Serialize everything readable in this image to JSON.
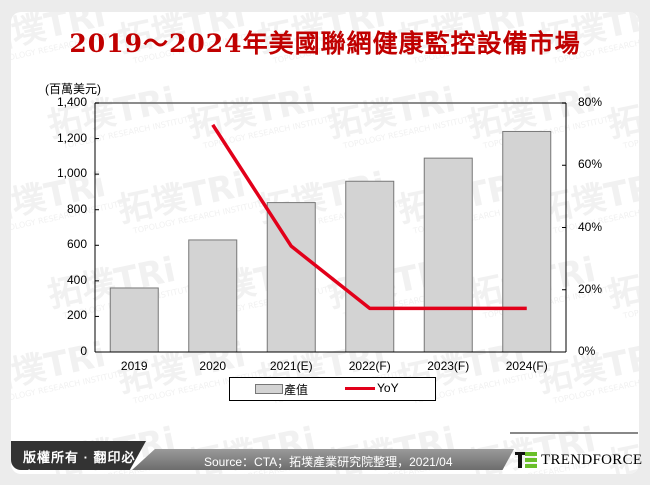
{
  "title": "2019～2024年美國聯網健康監控設備市場",
  "unit_label": "(百萬美元)",
  "chart_data": {
    "type": "bar",
    "title": "2019～2024年美國聯網健康監控設備市場",
    "categories": [
      "2019",
      "2020",
      "2021(E)",
      "2022(F)",
      "2023(F)",
      "2024(F)"
    ],
    "series": [
      {
        "name": "產值",
        "type": "bar",
        "axis": "left",
        "color": "#d3d3d3",
        "values": [
          360,
          630,
          840,
          960,
          1090,
          1240
        ]
      },
      {
        "name": "YoY",
        "type": "line",
        "axis": "right",
        "color": "#e2001a",
        "values": [
          null,
          73,
          34,
          14,
          14,
          14
        ]
      }
    ],
    "ylabel": "(百萬美元)",
    "ylim": [
      0,
      1400
    ],
    "y_ticks": [
      "0",
      "200",
      "400",
      "600",
      "800",
      "1,000",
      "1,200",
      "1,400"
    ],
    "y2lim": [
      0,
      80
    ],
    "y2_ticks": [
      "0%",
      "20%",
      "40%",
      "60%",
      "80%"
    ],
    "legend_position": "bottom",
    "grid": false
  },
  "legend": {
    "bar_label": "產值",
    "line_label": "YoY"
  },
  "footer": {
    "copyright": "版權所有 · 翻印必究",
    "source": "Source：CTA；拓墣產業研究院整理，2021/04",
    "brand": "TRENDFORCE"
  },
  "watermark": {
    "cn": "拓墣",
    "en": "TOPOLOGY RESEARCH INSTITUTE"
  },
  "colors": {
    "title": "#c00000",
    "line": "#e2001a",
    "bar": "#d3d3d3",
    "brand_green": "#6abf2a"
  }
}
